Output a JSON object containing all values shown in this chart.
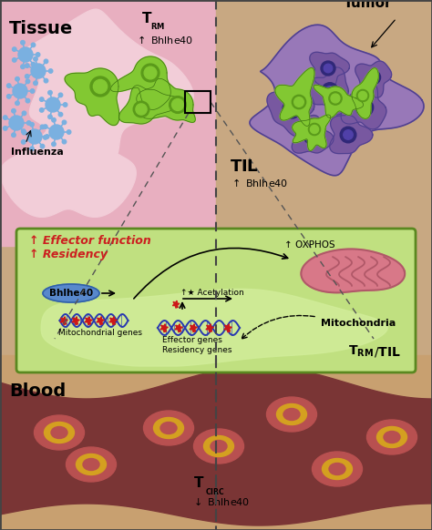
{
  "fig_width": 4.74,
  "fig_height": 5.82,
  "dpi": 100,
  "bg_color": "#c8a882",
  "tissue_bg": "#e8afc0",
  "tissue_inner": "#f2cdd8",
  "tumor_bg": "#c8a882",
  "blood_dark": "#7a3535",
  "blood_bg_tan": "#c8a070",
  "blood_rbc_outer": "#b85050",
  "blood_rbc_ring": "#d4a020",
  "blood_rbc_center": "#b85050",
  "cell_green": "#82c832",
  "cell_mid_green": "#5a9a1a",
  "cell_dark_green": "#3a7010",
  "tumor_outer_purple": "#9878b8",
  "tumor_cell_purple": "#7858a0",
  "tumor_cell_dark": "#504090",
  "tumor_nucleus": "#302878",
  "mito_outer": "#d87888",
  "mito_inner": "#e09090",
  "mito_border": "#b05868",
  "mito_crista": "#b05868",
  "dna_blue": "#2838b0",
  "star_red": "#cc1818",
  "bhlhe_fill": "#5888cc",
  "bhlhe_border": "#3060a8",
  "green_box_fill": "#c0e080",
  "green_box_border": "#5a8820",
  "green_bubble": "#d0ec98",
  "text_red": "#cc2020",
  "virus_blue": "#7ab0e0",
  "virus_dark": "#4878b8",
  "border_color": "#444444",
  "arrow_color": "#222222",
  "tissue_label": "Tissue",
  "tumor_label": "Tumor",
  "blood_label": "Blood",
  "til_label": "TIL",
  "trm_bhlhe": "↑ Bhlhe40",
  "til_bhlhe": "↑ Bhlhe40",
  "influenza_label": "Influenza",
  "tcirc_bhlhe": "↓ Bhlhe40",
  "effector_text": "↑ Effector function",
  "residency_text": "↑ Residency",
  "bhlhe40_label": "Bhlhe40",
  "mito_genes_label": "Mitochondrial genes",
  "acetylation_label": "↑★ Acetylation",
  "effector_genes_label": "Effector genes",
  "residency_genes_label": "Residency genes",
  "oxphos_label": "↑ OXPHOS",
  "mitochondria_label": "Mitochondria",
  "trm_til_label": "T",
  "trm_til_sub": "RM",
  "trm_til_slash": "/TIL"
}
